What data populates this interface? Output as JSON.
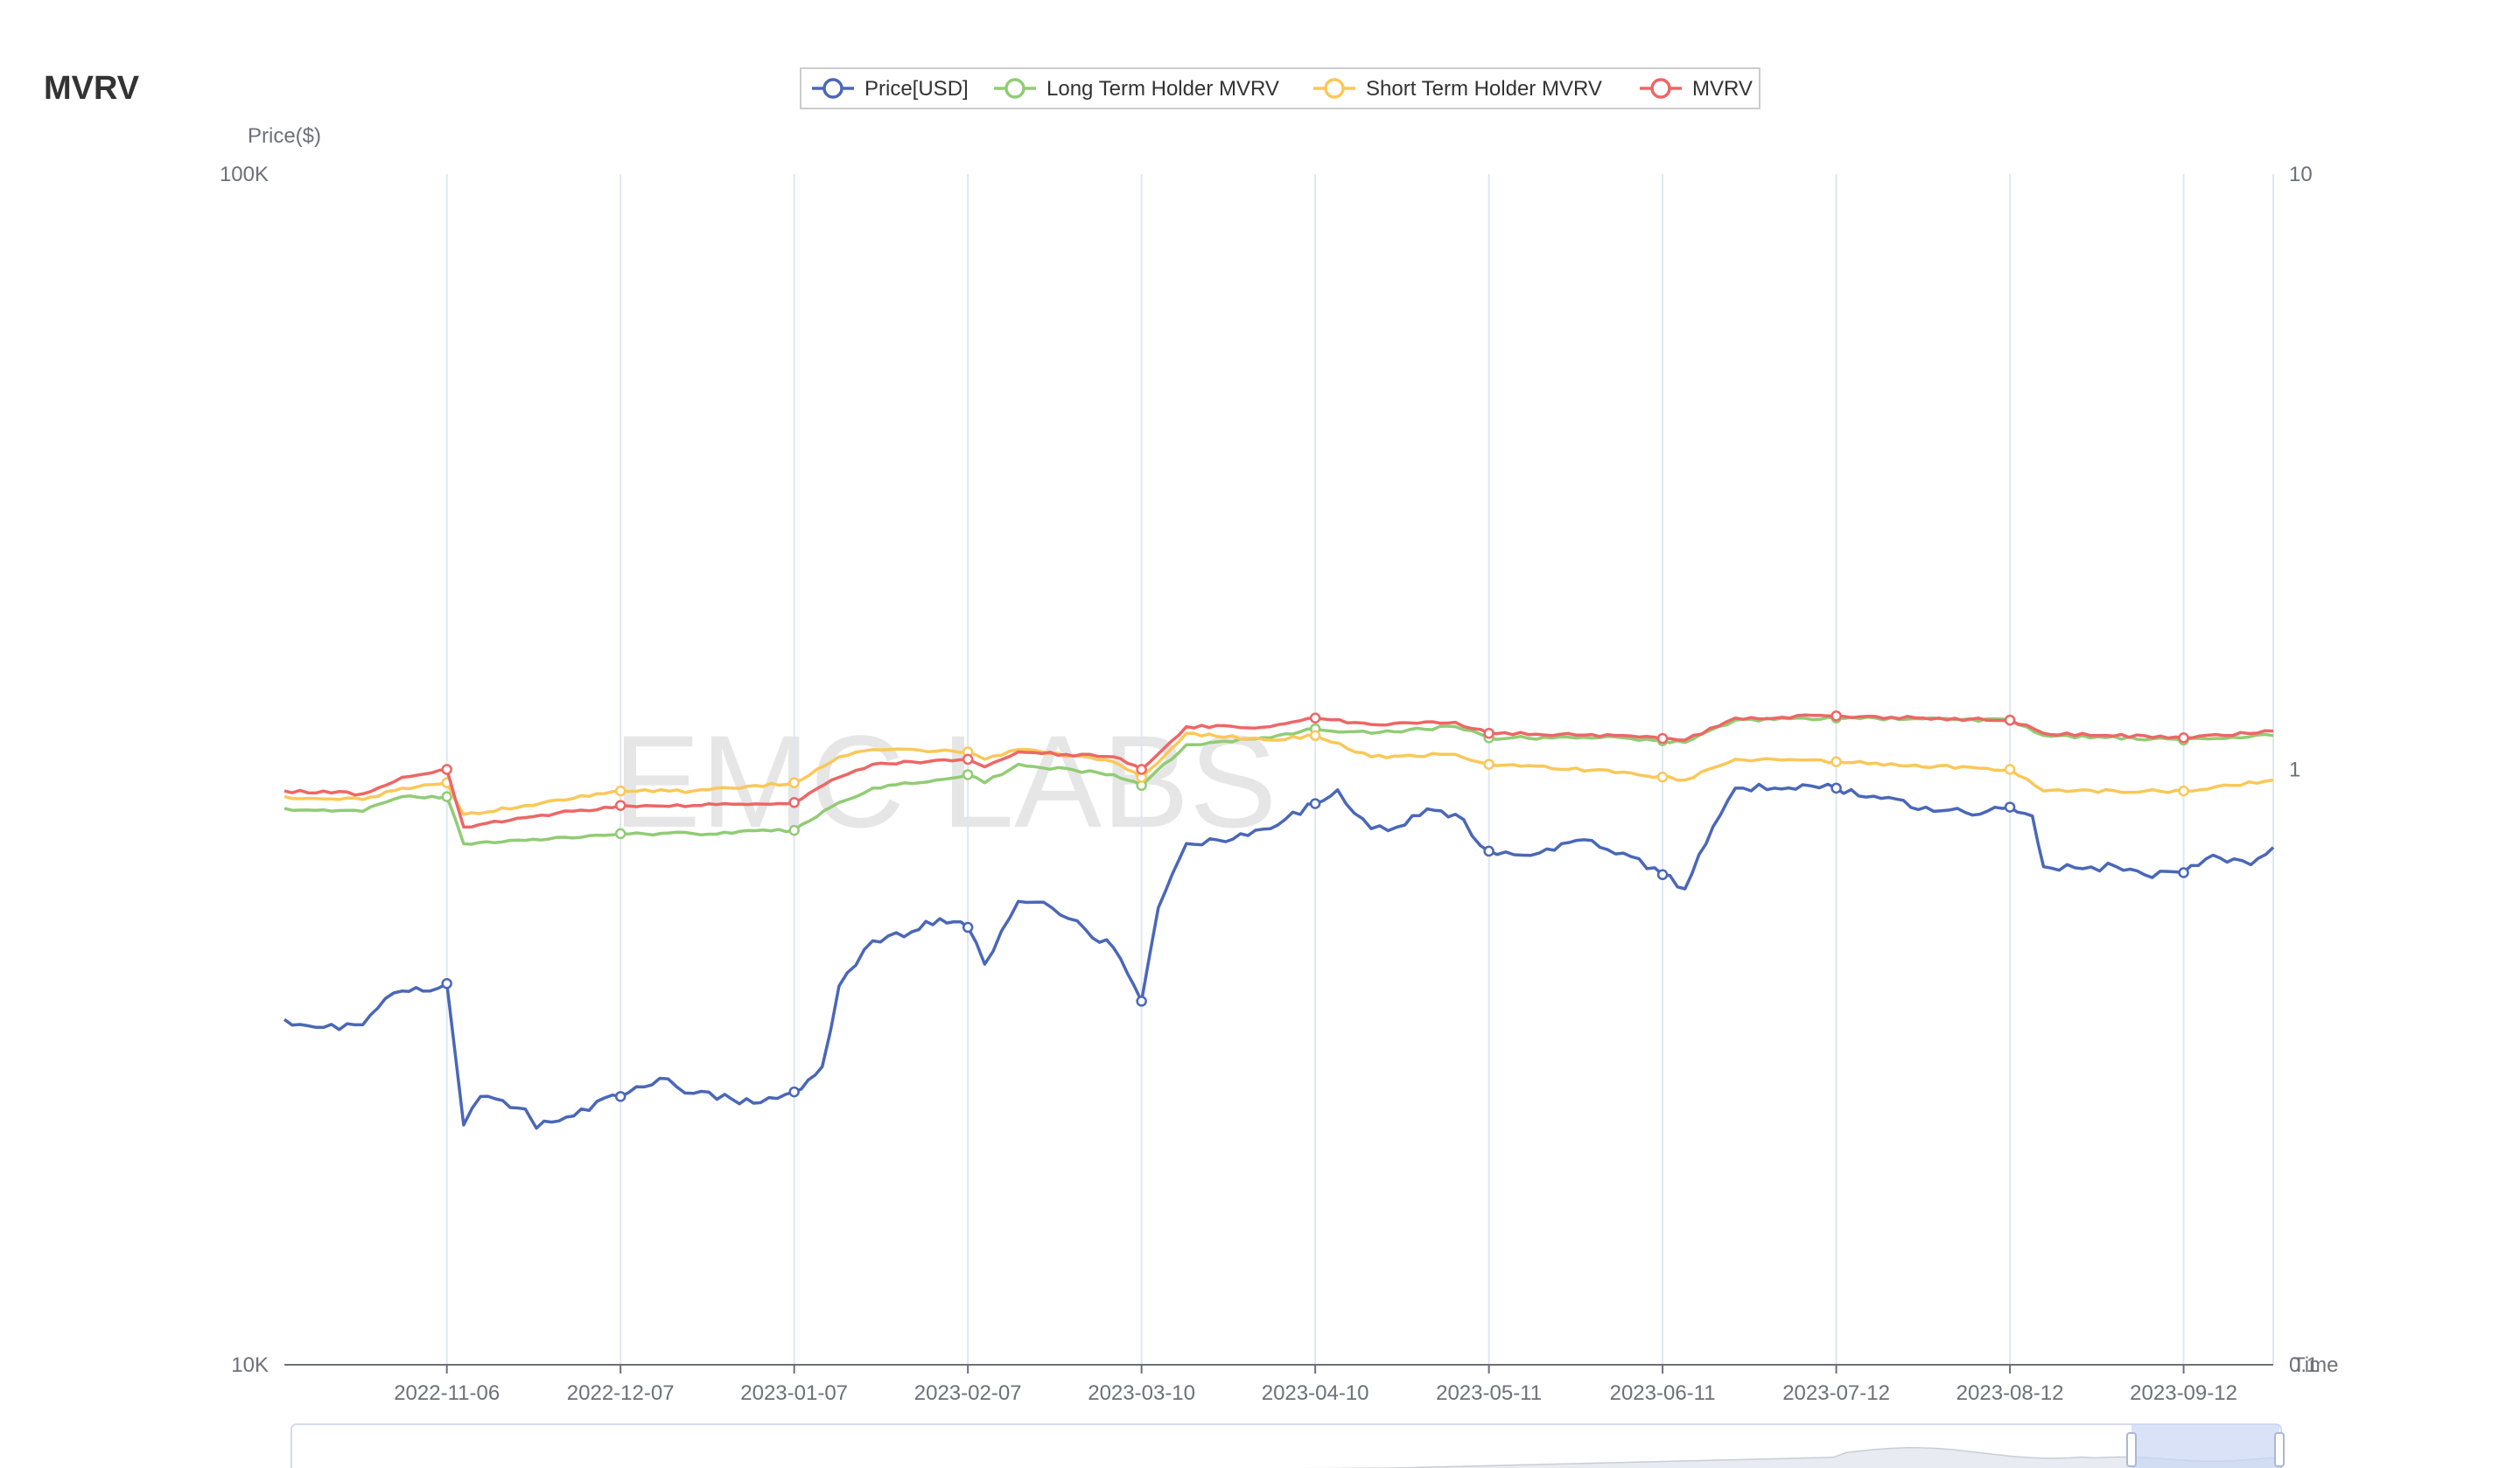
{
  "page": {
    "title": "MVRV",
    "watermark": "EMC LABS"
  },
  "chart_data": {
    "type": "line",
    "title": "MVRV",
    "x_type": "date",
    "x_range": [
      "2022-10-08",
      "2023-09-28"
    ],
    "x_ticks": [
      "2022-11-06",
      "2022-12-07",
      "2023-01-07",
      "2023-02-07",
      "2023-03-10",
      "2023-04-10",
      "2023-05-11",
      "2023-06-11",
      "2023-07-12",
      "2023-08-12",
      "2023-09-12"
    ],
    "x_axis_name": "Time",
    "y_left": {
      "name": "Price($)",
      "scale": "log",
      "min": 10000,
      "max": 100000,
      "tick_labels": [
        "10K",
        "100K"
      ]
    },
    "y_right": {
      "name": "",
      "scale": "log",
      "min": 0.1,
      "max": 10,
      "tick_labels": [
        "0.1",
        "1",
        "10"
      ]
    },
    "legend_position": "top-center",
    "grid_vertical": true,
    "series": [
      {
        "name": "Price[USD]",
        "axis": "left",
        "color": "#4a67b8",
        "points": [
          [
            "2022-10-08",
            19500
          ],
          [
            "2022-10-15",
            19200
          ],
          [
            "2022-10-22",
            19300
          ],
          [
            "2022-10-26",
            20300
          ],
          [
            "2022-10-29",
            20600
          ],
          [
            "2022-11-03",
            20600
          ],
          [
            "2022-11-06",
            20900
          ],
          [
            "2022-11-09",
            15900
          ],
          [
            "2022-11-12",
            16800
          ],
          [
            "2022-11-20",
            16400
          ],
          [
            "2022-11-22",
            15800
          ],
          [
            "2022-11-30",
            16400
          ],
          [
            "2022-12-07",
            16800
          ],
          [
            "2022-12-14",
            17400
          ],
          [
            "2022-12-20",
            16900
          ],
          [
            "2022-12-27",
            16700
          ],
          [
            "2023-01-01",
            16600
          ],
          [
            "2023-01-07",
            16950
          ],
          [
            "2023-01-12",
            17800
          ],
          [
            "2023-01-15",
            20800
          ],
          [
            "2023-01-21",
            22700
          ],
          [
            "2023-01-28",
            23100
          ],
          [
            "2023-02-02",
            23700
          ],
          [
            "2023-02-07",
            23300
          ],
          [
            "2023-02-10",
            21700
          ],
          [
            "2023-02-16",
            24500
          ],
          [
            "2023-02-22",
            24200
          ],
          [
            "2023-02-28",
            23200
          ],
          [
            "2023-03-05",
            22400
          ],
          [
            "2023-03-10",
            20200
          ],
          [
            "2023-03-13",
            24200
          ],
          [
            "2023-03-18",
            27400
          ],
          [
            "2023-03-25",
            27500
          ],
          [
            "2023-04-02",
            28200
          ],
          [
            "2023-04-10",
            29600
          ],
          [
            "2023-04-14",
            30400
          ],
          [
            "2023-04-20",
            28200
          ],
          [
            "2023-04-26",
            28400
          ],
          [
            "2023-04-30",
            29300
          ],
          [
            "2023-05-05",
            29000
          ],
          [
            "2023-05-11",
            27000
          ],
          [
            "2023-05-20",
            26900
          ],
          [
            "2023-05-28",
            27600
          ],
          [
            "2023-06-04",
            26900
          ],
          [
            "2023-06-11",
            25800
          ],
          [
            "2023-06-15",
            25100
          ],
          [
            "2023-06-20",
            28300
          ],
          [
            "2023-06-24",
            30500
          ],
          [
            "2023-07-01",
            30500
          ],
          [
            "2023-07-06",
            30700
          ],
          [
            "2023-07-12",
            30500
          ],
          [
            "2023-07-20",
            29900
          ],
          [
            "2023-07-28",
            29400
          ],
          [
            "2023-08-04",
            29100
          ],
          [
            "2023-08-12",
            29400
          ],
          [
            "2023-08-16",
            28900
          ],
          [
            "2023-08-18",
            26200
          ],
          [
            "2023-08-25",
            26100
          ],
          [
            "2023-08-31",
            26200
          ],
          [
            "2023-09-05",
            25800
          ],
          [
            "2023-09-12",
            25900
          ],
          [
            "2023-09-16",
            26600
          ],
          [
            "2023-09-21",
            26600
          ],
          [
            "2023-09-24",
            26300
          ],
          [
            "2023-09-28",
            27200
          ]
        ]
      },
      {
        "name": "Long Term Holder MVRV",
        "axis": "right",
        "color": "#91cc75",
        "points": [
          [
            "2022-10-08",
            0.86
          ],
          [
            "2022-10-22",
            0.85
          ],
          [
            "2022-10-29",
            0.9
          ],
          [
            "2022-11-06",
            0.9
          ],
          [
            "2022-11-09",
            0.75
          ],
          [
            "2022-11-20",
            0.76
          ],
          [
            "2022-12-07",
            0.78
          ],
          [
            "2022-12-20",
            0.78
          ],
          [
            "2023-01-07",
            0.79
          ],
          [
            "2023-01-15",
            0.88
          ],
          [
            "2023-01-21",
            0.93
          ],
          [
            "2023-02-07",
            0.98
          ],
          [
            "2023-02-10",
            0.95
          ],
          [
            "2023-02-16",
            1.02
          ],
          [
            "2023-03-05",
            0.98
          ],
          [
            "2023-03-10",
            0.94
          ],
          [
            "2023-03-18",
            1.1
          ],
          [
            "2023-04-02",
            1.13
          ],
          [
            "2023-04-10",
            1.17
          ],
          [
            "2023-04-20",
            1.15
          ],
          [
            "2023-05-05",
            1.18
          ],
          [
            "2023-05-11",
            1.13
          ],
          [
            "2023-06-04",
            1.13
          ],
          [
            "2023-06-15",
            1.11
          ],
          [
            "2023-06-24",
            1.21
          ],
          [
            "2023-07-12",
            1.22
          ],
          [
            "2023-08-12",
            1.21
          ],
          [
            "2023-08-18",
            1.14
          ],
          [
            "2023-09-12",
            1.12
          ],
          [
            "2023-09-28",
            1.14
          ]
        ]
      },
      {
        "name": "Short Term Holder MVRV",
        "axis": "right",
        "color": "#fac858",
        "points": [
          [
            "2022-10-08",
            0.9
          ],
          [
            "2022-10-22",
            0.89
          ],
          [
            "2022-10-29",
            0.93
          ],
          [
            "2022-11-06",
            0.95
          ],
          [
            "2022-11-09",
            0.84
          ],
          [
            "2022-11-20",
            0.87
          ],
          [
            "2022-12-07",
            0.92
          ],
          [
            "2022-12-20",
            0.92
          ],
          [
            "2023-01-07",
            0.95
          ],
          [
            "2023-01-15",
            1.05
          ],
          [
            "2023-01-21",
            1.08
          ],
          [
            "2023-02-07",
            1.07
          ],
          [
            "2023-02-10",
            1.04
          ],
          [
            "2023-02-16",
            1.08
          ],
          [
            "2023-03-05",
            1.03
          ],
          [
            "2023-03-10",
            0.97
          ],
          [
            "2023-03-18",
            1.15
          ],
          [
            "2023-04-02",
            1.12
          ],
          [
            "2023-04-10",
            1.14
          ],
          [
            "2023-04-20",
            1.05
          ],
          [
            "2023-05-05",
            1.06
          ],
          [
            "2023-05-11",
            1.02
          ],
          [
            "2023-06-04",
            0.99
          ],
          [
            "2023-06-15",
            0.96
          ],
          [
            "2023-06-24",
            1.04
          ],
          [
            "2023-07-12",
            1.03
          ],
          [
            "2023-08-12",
            1.0
          ],
          [
            "2023-08-18",
            0.92
          ],
          [
            "2023-09-12",
            0.92
          ],
          [
            "2023-09-28",
            0.96
          ]
        ]
      },
      {
        "name": "MVRV",
        "axis": "right",
        "color": "#ee6666",
        "points": [
          [
            "2022-10-08",
            0.92
          ],
          [
            "2022-10-22",
            0.91
          ],
          [
            "2022-10-29",
            0.97
          ],
          [
            "2022-11-06",
            1.0
          ],
          [
            "2022-11-09",
            0.8
          ],
          [
            "2022-11-20",
            0.83
          ],
          [
            "2022-12-07",
            0.87
          ],
          [
            "2022-12-20",
            0.87
          ],
          [
            "2023-01-07",
            0.88
          ],
          [
            "2023-01-15",
            0.97
          ],
          [
            "2023-01-21",
            1.02
          ],
          [
            "2023-02-07",
            1.04
          ],
          [
            "2023-02-10",
            1.01
          ],
          [
            "2023-02-16",
            1.07
          ],
          [
            "2023-03-05",
            1.05
          ],
          [
            "2023-03-10",
            1.0
          ],
          [
            "2023-03-18",
            1.18
          ],
          [
            "2023-04-02",
            1.18
          ],
          [
            "2023-04-10",
            1.22
          ],
          [
            "2023-04-20",
            1.19
          ],
          [
            "2023-05-05",
            1.2
          ],
          [
            "2023-05-11",
            1.15
          ],
          [
            "2023-06-04",
            1.14
          ],
          [
            "2023-06-15",
            1.12
          ],
          [
            "2023-06-24",
            1.22
          ],
          [
            "2023-07-12",
            1.23
          ],
          [
            "2023-08-12",
            1.21
          ],
          [
            "2023-08-18",
            1.15
          ],
          [
            "2023-09-12",
            1.13
          ],
          [
            "2023-09-28",
            1.16
          ]
        ]
      }
    ]
  }
}
